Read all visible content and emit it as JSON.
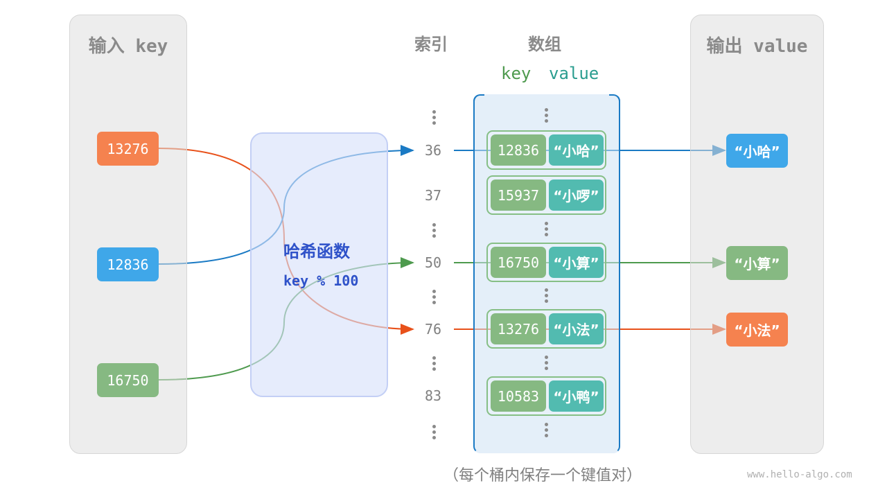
{
  "input_panel": {
    "title": "输入 key"
  },
  "output_panel": {
    "title": "输出 value"
  },
  "hash_function": {
    "title": "哈希函数",
    "formula": "key % 100"
  },
  "headers": {
    "index": "索引",
    "array": "数组",
    "key": "key",
    "value": "value"
  },
  "input_keys": [
    {
      "key": "13276",
      "color": "#f5824f"
    },
    {
      "key": "12836",
      "color": "#3fa7e9"
    },
    {
      "key": "16750",
      "color": "#86b982"
    }
  ],
  "indices": [
    "36",
    "37",
    "50",
    "76",
    "83"
  ],
  "buckets": [
    {
      "index": "36",
      "key": "12836",
      "value": "“小哈”"
    },
    {
      "index": "37",
      "key": "15937",
      "value": "“小啰”"
    },
    {
      "index": "50",
      "key": "16750",
      "value": "“小算”"
    },
    {
      "index": "76",
      "key": "13276",
      "value": "“小法”"
    },
    {
      "index": "83",
      "key": "10583",
      "value": "“小鸭”"
    }
  ],
  "outputs": [
    {
      "value": "“小哈”",
      "color": "#3fa7e9"
    },
    {
      "value": "“小算”",
      "color": "#86b982"
    },
    {
      "value": "“小法”",
      "color": "#f5824f"
    }
  ],
  "caption": "（每个桶内保存一个键值对）",
  "watermark": "www.hello-algo.com",
  "colors": {
    "orange_line": "#e8511a",
    "blue_line": "#1a7ac4",
    "green_line": "#4e9a4e",
    "bucket_border": "#1a7ac4"
  }
}
